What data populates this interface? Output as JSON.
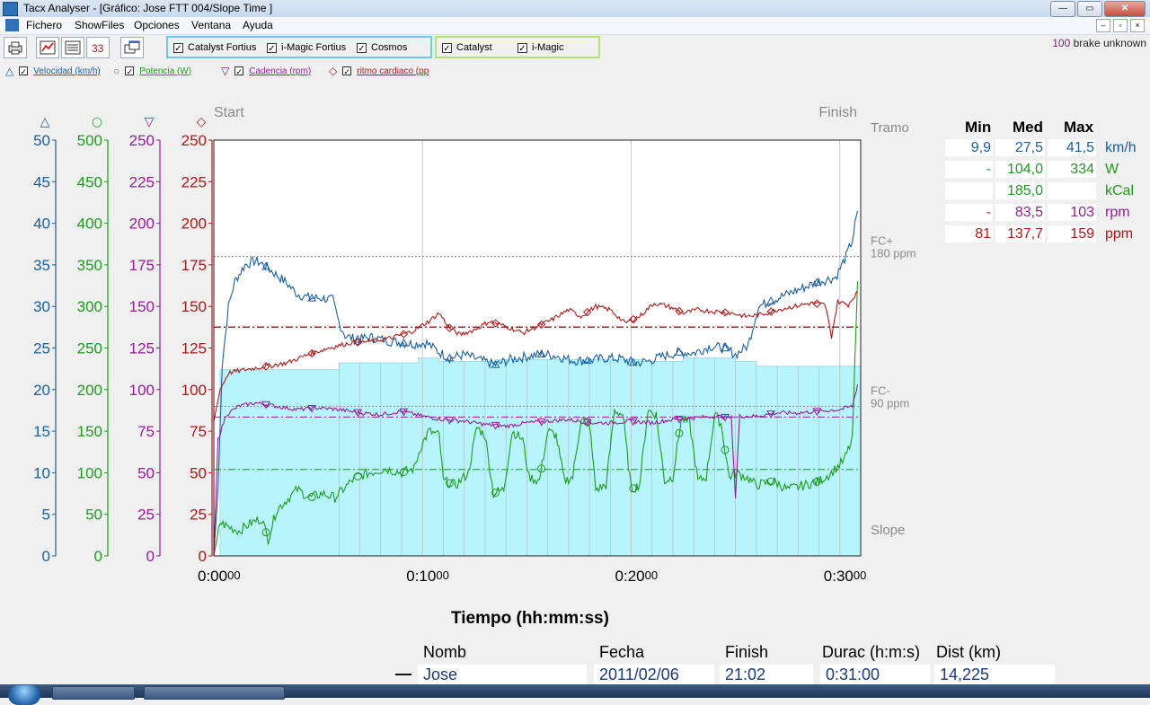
{
  "window": {
    "title": "Tacx Analyser - [Gráfico:  Jose  FTT 004/Slope Time  ]",
    "buttons": {
      "minimize": "—",
      "maximize": "▭",
      "close": "✕"
    }
  },
  "menu": {
    "items": [
      "Fichero",
      "ShowFiles",
      "Opciones",
      "Ventana",
      "Ayuda"
    ],
    "doc_buttons": [
      "–",
      "▫",
      "×"
    ]
  },
  "toolbar": {
    "buttons": [
      "print-icon",
      "graph-icon",
      "list-icon",
      "laps-icon",
      "windows-icon"
    ],
    "group_blue": [
      {
        "label": "Catalyst Fortius",
        "checked": true
      },
      {
        "label": "i-Magic Fortius",
        "checked": true
      },
      {
        "label": "Cosmos",
        "checked": true
      }
    ],
    "group_green": [
      {
        "label": "Catalyst",
        "checked": true
      },
      {
        "label": "i-Magic",
        "checked": true
      }
    ],
    "brake_value": "100",
    "brake_text": "brake unknown"
  },
  "legend": [
    {
      "symbol": "△",
      "label": "Velocidad (km/h)",
      "color": "#1a5fa0",
      "checked": true
    },
    {
      "symbol": "○",
      "label": "Potencia (W)",
      "color": "#1f9a1f",
      "checked": true
    },
    {
      "symbol": "▽",
      "label": "Cadencia (rpm)",
      "color": "#9a1a9a",
      "checked": true
    },
    {
      "symbol": "◇",
      "label": "ritmo cardiaco (pp",
      "color": "#b01818",
      "checked": true
    }
  ],
  "chart_data": {
    "type": "line",
    "x_unit": "minutes",
    "xlim": [
      0,
      31
    ],
    "x_ticks": [
      {
        "value": 0,
        "label": "0:00",
        "suffix": "00"
      },
      {
        "value": 10,
        "label": "0:10",
        "suffix": "00"
      },
      {
        "value": 20,
        "label": "0:20",
        "suffix": "00"
      },
      {
        "value": 30,
        "label": "0:30",
        "suffix": "00"
      }
    ],
    "xlabel": "Tiempo (hh:mm:ss)",
    "start_label": "Start",
    "finish_label": "Finish",
    "axes": [
      {
        "symbol": "△",
        "color": "#1a5fa0",
        "ylim": [
          0,
          50
        ],
        "ticks": [
          0,
          5,
          10,
          15,
          20,
          25,
          30,
          35,
          40,
          45,
          50
        ]
      },
      {
        "symbol": "○",
        "color": "#1f9a1f",
        "ylim": [
          0,
          500
        ],
        "ticks": [
          0,
          50,
          100,
          150,
          200,
          250,
          300,
          350,
          400,
          450,
          500
        ]
      },
      {
        "symbol": "▽",
        "color": "#9a1a9a",
        "ylim": [
          0,
          250
        ],
        "ticks": [
          0,
          25,
          50,
          75,
          100,
          125,
          150,
          175,
          200,
          225,
          250
        ]
      },
      {
        "symbol": "◇",
        "color": "#b01818",
        "ylim": [
          0,
          250
        ],
        "ticks": [
          0,
          25,
          50,
          75,
          100,
          125,
          150,
          175,
          200,
          225,
          250
        ]
      }
    ],
    "right_labels": {
      "tramo": "Tramo",
      "fc_plus": "FC+",
      "fc_plus_val": "180 ppm",
      "fc_minus": "FC-",
      "fc_minus_val": "90 ppm",
      "slope": "Slope"
    },
    "fc_plus_value": 180,
    "fc_minus_value": 90,
    "slope_fill_color": "#b8f4fc",
    "slope_steps": [
      {
        "x0": 0,
        "x1": 0.3,
        "y": 0
      },
      {
        "x0": 0.3,
        "x1": 6.0,
        "y": 112
      },
      {
        "x0": 6.0,
        "x1": 9.8,
        "y": 116
      },
      {
        "x0": 9.8,
        "x1": 10.8,
        "y": 119
      },
      {
        "x0": 10.8,
        "x1": 13.5,
        "y": 117
      },
      {
        "x0": 13.5,
        "x1": 20.5,
        "y": 118
      },
      {
        "x0": 20.5,
        "x1": 22.5,
        "y": 117
      },
      {
        "x0": 22.5,
        "x1": 25.0,
        "y": 119
      },
      {
        "x0": 25.0,
        "x1": 26.0,
        "y": 117
      },
      {
        "x0": 26.0,
        "x1": 29.9,
        "y": 114
      },
      {
        "x0": 29.9,
        "x1": 31.0,
        "y": 114
      }
    ],
    "series": [
      {
        "name": "Velocidad (km/h)",
        "color": "#1a5fa0",
        "axis": 0,
        "avg": 27.5,
        "points": [
          [
            0,
            0
          ],
          [
            0.2,
            8
          ],
          [
            0.4,
            23
          ],
          [
            0.7,
            30
          ],
          [
            1.0,
            33
          ],
          [
            1.5,
            35
          ],
          [
            2.0,
            35.5
          ],
          [
            2.4,
            35
          ],
          [
            2.9,
            34
          ],
          [
            3.4,
            33
          ],
          [
            4.0,
            31.5
          ],
          [
            4.6,
            31
          ],
          [
            5.2,
            31
          ],
          [
            5.7,
            30.8
          ],
          [
            6.0,
            28
          ],
          [
            6.3,
            26.5
          ],
          [
            6.8,
            26
          ],
          [
            7.5,
            26.3
          ],
          [
            8.5,
            25.8
          ],
          [
            9.5,
            25.5
          ],
          [
            10.2,
            25.6
          ],
          [
            10.8,
            24.5
          ],
          [
            11.3,
            23.8
          ],
          [
            12.0,
            24.2
          ],
          [
            12.8,
            23.5
          ],
          [
            13.5,
            23
          ],
          [
            14.2,
            23.6
          ],
          [
            15.0,
            24
          ],
          [
            15.8,
            24.3
          ],
          [
            16.5,
            24
          ],
          [
            17.2,
            23.5
          ],
          [
            18.0,
            23.5
          ],
          [
            18.8,
            23.8
          ],
          [
            19.5,
            23.7
          ],
          [
            20.2,
            23.2
          ],
          [
            20.8,
            23.4
          ],
          [
            21.5,
            24
          ],
          [
            22.3,
            24.5
          ],
          [
            23.0,
            24.4
          ],
          [
            23.8,
            25.2
          ],
          [
            24.5,
            25
          ],
          [
            25.0,
            24.2
          ],
          [
            25.6,
            25.3
          ],
          [
            26.1,
            30
          ],
          [
            27.0,
            31
          ],
          [
            28.0,
            32
          ],
          [
            29.0,
            33
          ],
          [
            29.8,
            33.5
          ],
          [
            30.3,
            36
          ],
          [
            30.6,
            38
          ],
          [
            30.85,
            41.5
          ]
        ]
      },
      {
        "name": "Potencia (W)",
        "color": "#1f9a1f",
        "axis": 1,
        "avg": 104.0,
        "points": [
          [
            0,
            0
          ],
          [
            0.3,
            40
          ],
          [
            0.7,
            35
          ],
          [
            1.2,
            30
          ],
          [
            1.8,
            40
          ],
          [
            2.3,
            45
          ],
          [
            2.6,
            20
          ],
          [
            3.0,
            55
          ],
          [
            3.4,
            65
          ],
          [
            4.0,
            80
          ],
          [
            4.6,
            70
          ],
          [
            5.2,
            75
          ],
          [
            5.8,
            70
          ],
          [
            6.2,
            80
          ],
          [
            6.8,
            95
          ],
          [
            7.5,
            100
          ],
          [
            8.2,
            105
          ],
          [
            9.0,
            100
          ],
          [
            9.6,
            105
          ],
          [
            9.9,
            130
          ],
          [
            10.3,
            150
          ],
          [
            10.8,
            145
          ],
          [
            11.0,
            90
          ],
          [
            11.6,
            85
          ],
          [
            12.2,
            100
          ],
          [
            12.6,
            155
          ],
          [
            13.0,
            145
          ],
          [
            13.4,
            75
          ],
          [
            13.9,
            80
          ],
          [
            14.3,
            150
          ],
          [
            14.8,
            140
          ],
          [
            15.1,
            95
          ],
          [
            15.6,
            90
          ],
          [
            16.0,
            150
          ],
          [
            16.4,
            145
          ],
          [
            16.8,
            90
          ],
          [
            17.2,
            95
          ],
          [
            17.6,
            165
          ],
          [
            18.0,
            160
          ],
          [
            18.3,
            80
          ],
          [
            18.8,
            85
          ],
          [
            19.2,
            175
          ],
          [
            19.6,
            170
          ],
          [
            20.0,
            80
          ],
          [
            20.4,
            85
          ],
          [
            20.8,
            175
          ],
          [
            21.2,
            170
          ],
          [
            21.6,
            90
          ],
          [
            22.0,
            95
          ],
          [
            22.4,
            165
          ],
          [
            22.8,
            160
          ],
          [
            23.2,
            90
          ],
          [
            23.6,
            95
          ],
          [
            24.0,
            170
          ],
          [
            24.3,
            160
          ],
          [
            24.7,
            95
          ],
          [
            25.0,
            100
          ],
          [
            25.5,
            95
          ],
          [
            26.0,
            85
          ],
          [
            26.8,
            90
          ],
          [
            27.5,
            80
          ],
          [
            28.3,
            85
          ],
          [
            29.0,
            90
          ],
          [
            29.6,
            100
          ],
          [
            30.2,
            115
          ],
          [
            30.6,
            140
          ],
          [
            30.85,
            330
          ]
        ]
      },
      {
        "name": "Cadencia (rpm)",
        "color": "#9a1a9a",
        "axis": 2,
        "avg": 83.5,
        "points": [
          [
            0,
            0
          ],
          [
            0.2,
            70
          ],
          [
            0.6,
            85
          ],
          [
            1.2,
            90
          ],
          [
            2.0,
            92
          ],
          [
            3.0,
            90
          ],
          [
            4.0,
            88
          ],
          [
            5.0,
            89
          ],
          [
            6.0,
            88
          ],
          [
            7.0,
            86
          ],
          [
            8.0,
            85
          ],
          [
            9.0,
            87
          ],
          [
            10.0,
            84
          ],
          [
            11.0,
            82
          ],
          [
            12.0,
            81
          ],
          [
            13.0,
            79
          ],
          [
            14.0,
            78
          ],
          [
            15.0,
            80
          ],
          [
            16.0,
            81
          ],
          [
            17.0,
            82
          ],
          [
            18.0,
            80
          ],
          [
            19.0,
            80
          ],
          [
            20.0,
            81
          ],
          [
            21.0,
            80
          ],
          [
            22.0,
            82
          ],
          [
            23.0,
            83
          ],
          [
            24.0,
            84
          ],
          [
            24.8,
            83
          ],
          [
            25.0,
            35
          ],
          [
            25.2,
            84
          ],
          [
            26.0,
            84
          ],
          [
            27.0,
            86
          ],
          [
            28.0,
            86
          ],
          [
            29.0,
            87
          ],
          [
            30.0,
            88
          ],
          [
            30.6,
            90
          ],
          [
            30.85,
            103
          ]
        ]
      },
      {
        "name": "ritmo cardiaco (pp",
        "color": "#b01818",
        "axis": 3,
        "avg": 137.7,
        "points": [
          [
            0,
            81
          ],
          [
            0.3,
            100
          ],
          [
            0.7,
            110
          ],
          [
            1.5,
            112
          ],
          [
            2.5,
            114
          ],
          [
            3.5,
            116
          ],
          [
            4.5,
            121
          ],
          [
            5.5,
            125
          ],
          [
            6.5,
            128
          ],
          [
            7.5,
            129
          ],
          [
            8.5,
            131
          ],
          [
            9.5,
            135
          ],
          [
            10.3,
            141
          ],
          [
            10.8,
            146
          ],
          [
            11.3,
            137
          ],
          [
            11.8,
            133
          ],
          [
            12.5,
            136
          ],
          [
            13.2,
            141
          ],
          [
            14.0,
            138
          ],
          [
            14.8,
            134
          ],
          [
            15.5,
            138
          ],
          [
            16.2,
            142
          ],
          [
            17.0,
            148
          ],
          [
            17.6,
            144
          ],
          [
            18.3,
            150
          ],
          [
            19.0,
            148
          ],
          [
            19.7,
            140
          ],
          [
            20.4,
            144
          ],
          [
            21.1,
            152
          ],
          [
            21.8,
            150
          ],
          [
            22.5,
            146
          ],
          [
            23.2,
            148
          ],
          [
            24.0,
            147
          ],
          [
            24.8,
            146
          ],
          [
            25.5,
            144
          ],
          [
            26.2,
            145
          ],
          [
            27.0,
            148
          ],
          [
            27.8,
            150
          ],
          [
            28.6,
            152
          ],
          [
            29.3,
            151
          ],
          [
            29.6,
            132
          ],
          [
            29.9,
            153
          ],
          [
            30.4,
            151
          ],
          [
            30.85,
            159
          ]
        ]
      }
    ]
  },
  "stats": {
    "headers": [
      "Min",
      "Med",
      "Max"
    ],
    "rows": [
      {
        "min": "9,9",
        "med": "27,5",
        "max": "41,5",
        "unit": "km/h",
        "color": "#1a5fa0"
      },
      {
        "min": "-",
        "med": "104,0",
        "max": "334",
        "unit": "W",
        "color": "#1f9a1f"
      },
      {
        "min": "",
        "med": "185,0",
        "max": "",
        "unit": "kCal",
        "color": "#1f9a1f"
      },
      {
        "min": "-",
        "med": "83,5",
        "max": "103",
        "unit": "rpm",
        "color": "#9a1a9a"
      },
      {
        "min": "81",
        "med": "137,7",
        "max": "159",
        "unit": "ppm",
        "color": "#b01818"
      }
    ]
  },
  "rides": {
    "headers": [
      "Nomb",
      "Fecha",
      "Finish",
      "Durac (h:m:s)",
      "Dist (km)"
    ],
    "rows": [
      {
        "marker": "—",
        "name": "Jose",
        "date": "2011/02/06",
        "finish": "21:02",
        "duration": "0:31:00",
        "distance": "14,225"
      }
    ]
  }
}
